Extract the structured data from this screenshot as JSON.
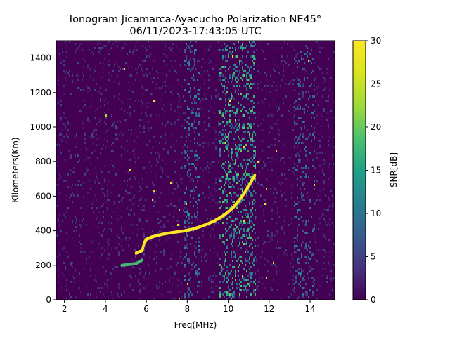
{
  "chart_data": {
    "type": "heatmap",
    "title_line1": "Ionogram Jicamarca-Ayacucho Polarization NE45°",
    "title_line2": "06/11/2023-17:43:05 UTC",
    "xlabel": "Freq(MHz)",
    "ylabel": "Kilometers(Km)",
    "colorbar_label": "SNR[dB]",
    "colormap": "viridis",
    "xlim": [
      1.6,
      15.2
    ],
    "ylim": [
      0,
      1500
    ],
    "clim": [
      0,
      30
    ],
    "xticks": [
      2,
      4,
      6,
      8,
      10,
      12,
      14
    ],
    "yticks": [
      0,
      200,
      400,
      600,
      800,
      1000,
      1200,
      1400
    ],
    "cticks": [
      0,
      5,
      10,
      15,
      20,
      25,
      30
    ],
    "echo_trace": {
      "snr_db": 30,
      "points": [
        [
          5.5,
          270
        ],
        [
          5.8,
          285
        ],
        [
          5.9,
          330
        ],
        [
          6.0,
          350
        ],
        [
          6.3,
          365
        ],
        [
          6.8,
          380
        ],
        [
          7.3,
          390
        ],
        [
          7.8,
          398
        ],
        [
          8.3,
          410
        ],
        [
          8.8,
          430
        ],
        [
          9.3,
          455
        ],
        [
          9.8,
          490
        ],
        [
          10.2,
          530
        ],
        [
          10.5,
          570
        ],
        [
          10.8,
          620
        ],
        [
          11.1,
          680
        ],
        [
          11.3,
          720
        ]
      ]
    },
    "weak_trace": {
      "snr_db": 18,
      "points": [
        [
          4.8,
          200
        ],
        [
          5.2,
          205
        ],
        [
          5.5,
          210
        ],
        [
          5.8,
          230
        ]
      ]
    },
    "noise_bands": [
      {
        "fmin": 9.5,
        "fmax": 11.3,
        "snr_db": 9
      },
      {
        "fmin": 7.8,
        "fmax": 8.6,
        "snr_db": 5
      },
      {
        "fmin": 13.2,
        "fmax": 14.2,
        "snr_db": 4
      }
    ]
  }
}
